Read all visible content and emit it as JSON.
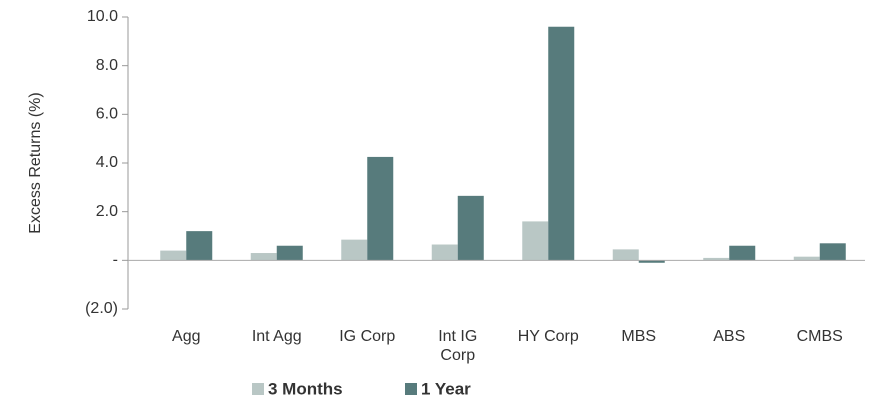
{
  "chart_data": {
    "type": "bar",
    "y_label": "Excess Returns (%)",
    "categories": [
      "Agg",
      "Int Agg",
      "IG Corp",
      "Int IG Corp",
      "HY Corp",
      "MBS",
      "ABS",
      "CMBS"
    ],
    "series": [
      {
        "name": "3 Months",
        "color": "#b9c7c5",
        "values": [
          0.4,
          0.3,
          0.85,
          0.65,
          1.6,
          0.45,
          0.1,
          0.15
        ]
      },
      {
        "name": "1 Year",
        "color": "#577b7c",
        "values": [
          1.2,
          0.6,
          4.25,
          2.65,
          9.6,
          -0.1,
          0.6,
          0.7
        ]
      }
    ],
    "ylim": [
      -2,
      10
    ],
    "yticks": [
      {
        "value": -2,
        "label": "(2.0)"
      },
      {
        "value": 0,
        "label": "-"
      },
      {
        "value": 2,
        "label": "2.0"
      },
      {
        "value": 4,
        "label": "4.0"
      },
      {
        "value": 6,
        "label": "6.0"
      },
      {
        "value": 8,
        "label": "8.0"
      },
      {
        "value": 10,
        "label": "10.0"
      }
    ],
    "grid": false,
    "legend": "bottom"
  }
}
